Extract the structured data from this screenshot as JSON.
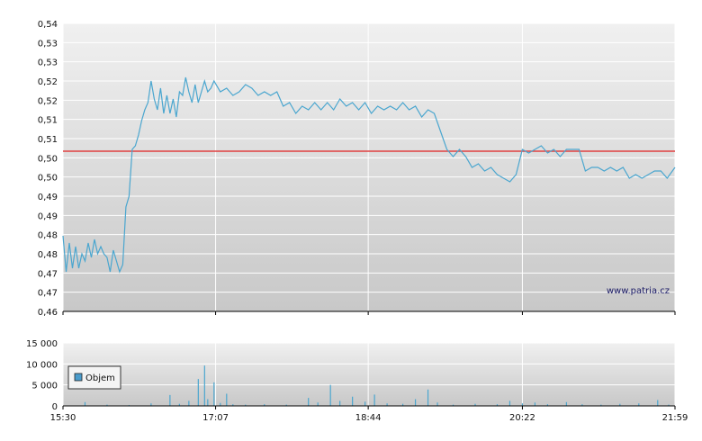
{
  "watermark": "www.patria.cz",
  "colors": {
    "price_line": "#4aa6cf",
    "reference_line": "#e04040",
    "volume_bar": "#4aa6cf",
    "legend_swatch": "#4a9ccc",
    "grid": "#ffffff",
    "plot_bg_top": "#f0f0f0",
    "plot_bg_bottom": "#c8c8c8"
  },
  "chart_data": [
    {
      "type": "line",
      "name": "price",
      "y_tick_labels": [
        "0,54",
        "0,53",
        "0,53",
        "0,52",
        "0,52",
        "0,51",
        "0,51",
        "0,50",
        "0,50",
        "0,49",
        "0,49",
        "0,48",
        "0,48",
        "0,47",
        "0,47",
        "0,46"
      ],
      "ylim": [
        0.46,
        0.54
      ],
      "x_tick_labels": [
        "15:30",
        "17:07",
        "18:44",
        "20:22",
        "21:59"
      ],
      "xlim": [
        "15:30",
        "21:59"
      ],
      "reference_line": 0.5045,
      "grid": true,
      "points": [
        [
          "15:30",
          0.481
        ],
        [
          "15:32",
          0.471
        ],
        [
          "15:34",
          0.479
        ],
        [
          "15:36",
          0.472
        ],
        [
          "15:38",
          0.478
        ],
        [
          "15:40",
          0.472
        ],
        [
          "15:42",
          0.476
        ],
        [
          "15:44",
          0.474
        ],
        [
          "15:46",
          0.479
        ],
        [
          "15:48",
          0.475
        ],
        [
          "15:50",
          0.48
        ],
        [
          "15:52",
          0.476
        ],
        [
          "15:54",
          0.478
        ],
        [
          "15:56",
          0.476
        ],
        [
          "15:58",
          0.475
        ],
        [
          "16:00",
          0.471
        ],
        [
          "16:02",
          0.477
        ],
        [
          "16:04",
          0.474
        ],
        [
          "16:06",
          0.471
        ],
        [
          "16:08",
          0.473
        ],
        [
          "16:10",
          0.489
        ],
        [
          "16:12",
          0.492
        ],
        [
          "16:14",
          0.505
        ],
        [
          "16:16",
          0.506
        ],
        [
          "16:18",
          0.509
        ],
        [
          "16:20",
          0.513
        ],
        [
          "16:22",
          0.516
        ],
        [
          "16:24",
          0.518
        ],
        [
          "16:26",
          0.524
        ],
        [
          "16:28",
          0.519
        ],
        [
          "16:30",
          0.516
        ],
        [
          "16:32",
          0.522
        ],
        [
          "16:34",
          0.515
        ],
        [
          "16:36",
          0.52
        ],
        [
          "16:38",
          0.515
        ],
        [
          "16:40",
          0.519
        ],
        [
          "16:42",
          0.514
        ],
        [
          "16:44",
          0.521
        ],
        [
          "16:46",
          0.52
        ],
        [
          "16:48",
          0.525
        ],
        [
          "16:50",
          0.521
        ],
        [
          "16:52",
          0.518
        ],
        [
          "16:54",
          0.523
        ],
        [
          "16:56",
          0.518
        ],
        [
          "16:58",
          0.521
        ],
        [
          "17:00",
          0.524
        ],
        [
          "17:02",
          0.521
        ],
        [
          "17:04",
          0.522
        ],
        [
          "17:06",
          0.524
        ],
        [
          "17:10",
          0.521
        ],
        [
          "17:14",
          0.522
        ],
        [
          "17:18",
          0.52
        ],
        [
          "17:22",
          0.521
        ],
        [
          "17:26",
          0.523
        ],
        [
          "17:30",
          0.522
        ],
        [
          "17:34",
          0.52
        ],
        [
          "17:38",
          0.521
        ],
        [
          "17:42",
          0.52
        ],
        [
          "17:46",
          0.521
        ],
        [
          "17:50",
          0.517
        ],
        [
          "17:54",
          0.518
        ],
        [
          "17:58",
          0.515
        ],
        [
          "18:02",
          0.517
        ],
        [
          "18:06",
          0.516
        ],
        [
          "18:10",
          0.518
        ],
        [
          "18:14",
          0.516
        ],
        [
          "18:18",
          0.518
        ],
        [
          "18:22",
          0.516
        ],
        [
          "18:26",
          0.519
        ],
        [
          "18:30",
          0.517
        ],
        [
          "18:34",
          0.518
        ],
        [
          "18:38",
          0.516
        ],
        [
          "18:42",
          0.518
        ],
        [
          "18:46",
          0.515
        ],
        [
          "18:50",
          0.517
        ],
        [
          "18:54",
          0.516
        ],
        [
          "18:58",
          0.517
        ],
        [
          "19:02",
          0.516
        ],
        [
          "19:06",
          0.518
        ],
        [
          "19:10",
          0.516
        ],
        [
          "19:14",
          0.517
        ],
        [
          "19:18",
          0.514
        ],
        [
          "19:22",
          0.516
        ],
        [
          "19:26",
          0.515
        ],
        [
          "19:30",
          0.51
        ],
        [
          "19:34",
          0.505
        ],
        [
          "19:38",
          0.503
        ],
        [
          "19:42",
          0.505
        ],
        [
          "19:46",
          0.503
        ],
        [
          "19:50",
          0.5
        ],
        [
          "19:54",
          0.501
        ],
        [
          "19:58",
          0.499
        ],
        [
          "20:02",
          0.5
        ],
        [
          "20:06",
          0.498
        ],
        [
          "20:10",
          0.497
        ],
        [
          "20:14",
          0.496
        ],
        [
          "20:18",
          0.498
        ],
        [
          "20:22",
          0.505
        ],
        [
          "20:26",
          0.504
        ],
        [
          "20:30",
          0.505
        ],
        [
          "20:34",
          0.506
        ],
        [
          "20:38",
          0.504
        ],
        [
          "20:42",
          0.505
        ],
        [
          "20:46",
          0.503
        ],
        [
          "20:50",
          0.505
        ],
        [
          "20:54",
          0.505
        ],
        [
          "20:58",
          0.505
        ],
        [
          "21:02",
          0.499
        ],
        [
          "21:06",
          0.5
        ],
        [
          "21:10",
          0.5
        ],
        [
          "21:14",
          0.499
        ],
        [
          "21:18",
          0.5
        ],
        [
          "21:22",
          0.499
        ],
        [
          "21:26",
          0.5
        ],
        [
          "21:30",
          0.497
        ],
        [
          "21:34",
          0.498
        ],
        [
          "21:38",
          0.497
        ],
        [
          "21:42",
          0.498
        ],
        [
          "21:46",
          0.499
        ],
        [
          "21:50",
          0.499
        ],
        [
          "21:54",
          0.497
        ],
        [
          "21:59",
          0.5
        ]
      ]
    },
    {
      "type": "bar",
      "name": "volume",
      "legend": "Objem",
      "y_tick_labels": [
        "15 000",
        "10 000",
        "5 000",
        "0"
      ],
      "ylim": [
        0,
        15000
      ],
      "x_tick_labels": [
        "15:30",
        "17:07",
        "18:44",
        "20:22",
        "21:59"
      ],
      "xlim": [
        "15:30",
        "21:59"
      ],
      "grid": true,
      "points": [
        [
          "15:44",
          900
        ],
        [
          "15:58",
          300
        ],
        [
          "16:12",
          200
        ],
        [
          "16:26",
          600
        ],
        [
          "16:38",
          2600
        ],
        [
          "16:44",
          500
        ],
        [
          "16:50",
          1200
        ],
        [
          "16:56",
          6400
        ],
        [
          "17:00",
          9600
        ],
        [
          "17:02",
          1600
        ],
        [
          "17:06",
          5600
        ],
        [
          "17:10",
          700
        ],
        [
          "17:14",
          2900
        ],
        [
          "17:18",
          400
        ],
        [
          "17:26",
          300
        ],
        [
          "17:38",
          400
        ],
        [
          "17:52",
          300
        ],
        [
          "18:06",
          1900
        ],
        [
          "18:12",
          800
        ],
        [
          "18:20",
          5000
        ],
        [
          "18:26",
          1200
        ],
        [
          "18:34",
          2200
        ],
        [
          "18:42",
          1000
        ],
        [
          "18:48",
          2700
        ],
        [
          "18:56",
          600
        ],
        [
          "19:06",
          500
        ],
        [
          "19:14",
          1600
        ],
        [
          "19:22",
          3900
        ],
        [
          "19:28",
          800
        ],
        [
          "19:38",
          300
        ],
        [
          "19:52",
          500
        ],
        [
          "20:06",
          400
        ],
        [
          "20:14",
          1200
        ],
        [
          "20:22",
          600
        ],
        [
          "20:30",
          800
        ],
        [
          "20:38",
          400
        ],
        [
          "20:50",
          900
        ],
        [
          "21:00",
          400
        ],
        [
          "21:12",
          300
        ],
        [
          "21:24",
          500
        ],
        [
          "21:36",
          600
        ],
        [
          "21:48",
          1400
        ],
        [
          "21:55",
          300
        ]
      ]
    }
  ]
}
